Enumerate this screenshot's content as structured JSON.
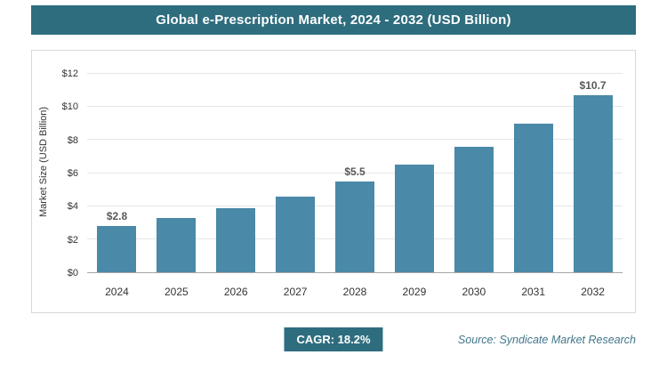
{
  "header": {
    "title": "Global e-Prescription Market, 2024 - 2032 (USD Billion)"
  },
  "chart_data": {
    "type": "bar",
    "title": "Global e-Prescription Market, 2024 - 2032 (USD Billion)",
    "categories": [
      "2024",
      "2025",
      "2026",
      "2027",
      "2028",
      "2029",
      "2030",
      "2031",
      "2032"
    ],
    "values": [
      2.8,
      3.3,
      3.9,
      4.6,
      5.5,
      6.5,
      7.6,
      9.0,
      10.7
    ],
    "data_labels": [
      "$2.8",
      null,
      null,
      null,
      "$5.5",
      null,
      null,
      null,
      "$10.7"
    ],
    "xlabel": "",
    "ylabel": "Market Size (USD Billion)",
    "ylim": [
      0,
      12
    ],
    "ytick_step": 2,
    "yticks": [
      "$0",
      "$2",
      "$4",
      "$6",
      "$8",
      "$10",
      "$12"
    ],
    "grid": true,
    "legend": false,
    "bar_color": "#4A89A8",
    "accent_color": "#2E6D7E"
  },
  "footer": {
    "cagr": "CAGR: 18.2%",
    "source": "Source: Syndicate Market Research"
  }
}
